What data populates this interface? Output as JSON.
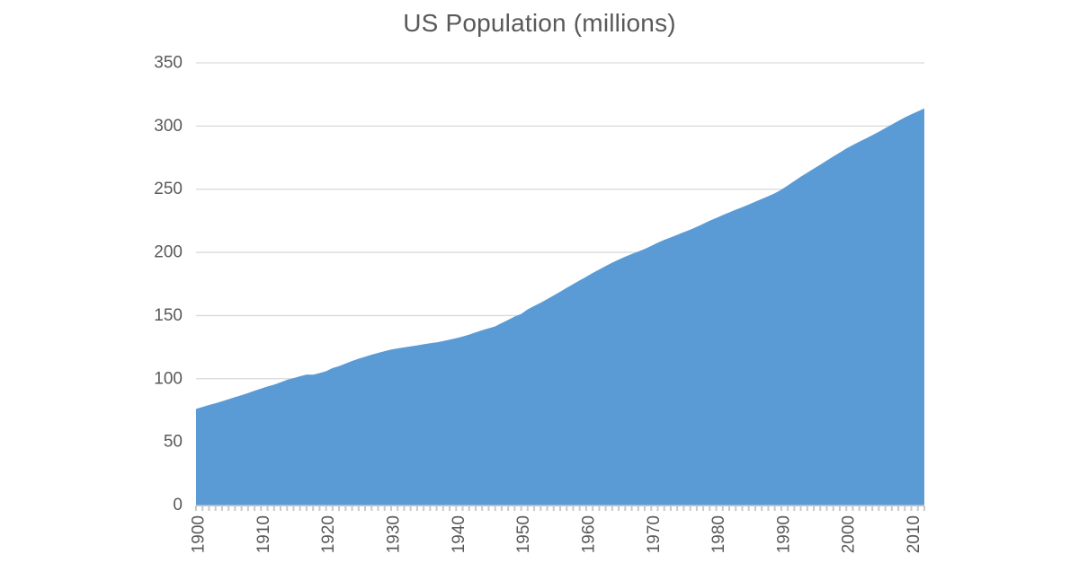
{
  "chart": {
    "title": "US Population (millions)"
  },
  "chart_data": {
    "type": "area",
    "title": "US Population (millions)",
    "xlabel": "",
    "ylabel": "",
    "legend": false,
    "grid": true,
    "xlim": [
      1900,
      2012
    ],
    "ylim": [
      0,
      350
    ],
    "y_ticks": [
      0,
      50,
      100,
      150,
      200,
      250,
      300,
      350
    ],
    "x_tick_labels": [
      "1900",
      "1910",
      "1920",
      "1930",
      "1940",
      "1950",
      "1960",
      "1970",
      "1980",
      "1990",
      "2000",
      "2010"
    ],
    "minor_x_tick_every_years": 1,
    "series_name": "US Population",
    "x": [
      1900,
      1901,
      1902,
      1903,
      1904,
      1905,
      1906,
      1907,
      1908,
      1909,
      1910,
      1911,
      1912,
      1913,
      1914,
      1915,
      1916,
      1917,
      1918,
      1919,
      1920,
      1921,
      1922,
      1923,
      1924,
      1925,
      1926,
      1927,
      1928,
      1929,
      1930,
      1931,
      1932,
      1933,
      1934,
      1935,
      1936,
      1937,
      1938,
      1939,
      1940,
      1941,
      1942,
      1943,
      1944,
      1945,
      1946,
      1947,
      1948,
      1949,
      1950,
      1951,
      1952,
      1953,
      1954,
      1955,
      1956,
      1957,
      1958,
      1959,
      1960,
      1961,
      1962,
      1963,
      1964,
      1965,
      1966,
      1967,
      1968,
      1969,
      1970,
      1971,
      1972,
      1973,
      1974,
      1975,
      1976,
      1977,
      1978,
      1979,
      1980,
      1981,
      1982,
      1983,
      1984,
      1985,
      1986,
      1987,
      1988,
      1989,
      1990,
      1991,
      1992,
      1993,
      1994,
      1995,
      1996,
      1997,
      1998,
      1999,
      2000,
      2001,
      2002,
      2003,
      2004,
      2005,
      2006,
      2007,
      2008,
      2009,
      2010,
      2011,
      2012
    ],
    "values": [
      76.1,
      77.6,
      79.2,
      80.6,
      82.2,
      83.8,
      85.5,
      87.0,
      88.7,
      90.5,
      92.2,
      93.9,
      95.3,
      97.2,
      99.1,
      100.5,
      102.0,
      103.3,
      103.2,
      104.5,
      106.0,
      108.5,
      110.0,
      112.0,
      114.1,
      115.8,
      117.4,
      119.0,
      120.5,
      121.8,
      123.1,
      124.0,
      124.8,
      125.6,
      126.4,
      127.3,
      128.1,
      128.8,
      129.8,
      130.9,
      132.1,
      133.4,
      134.9,
      136.7,
      138.4,
      139.9,
      141.4,
      144.1,
      146.6,
      149.2,
      151.3,
      154.9,
      157.6,
      160.2,
      163.0,
      165.9,
      168.9,
      172.0,
      174.9,
      177.8,
      180.7,
      183.7,
      186.5,
      189.2,
      191.9,
      194.3,
      196.6,
      198.7,
      200.7,
      202.7,
      205.1,
      207.7,
      209.9,
      211.9,
      213.9,
      216.0,
      218.0,
      220.2,
      222.6,
      225.1,
      227.2,
      229.5,
      231.7,
      233.8,
      235.8,
      237.9,
      240.1,
      242.3,
      244.5,
      246.8,
      249.6,
      253.0,
      256.5,
      259.9,
      263.1,
      266.3,
      269.4,
      272.7,
      275.9,
      279.0,
      282.2,
      285.0,
      287.6,
      290.1,
      292.8,
      295.5,
      298.4,
      301.2,
      304.1,
      306.8,
      309.3,
      311.6,
      313.9
    ],
    "colors": {
      "area_fill": "#5B9BD5",
      "gridline": "#D9D9D9",
      "axis_line": "#C9C9C9",
      "tick": "#C9C9C9",
      "axis_text": "#595959",
      "title_text": "#595959",
      "background": "#FFFFFF"
    }
  }
}
